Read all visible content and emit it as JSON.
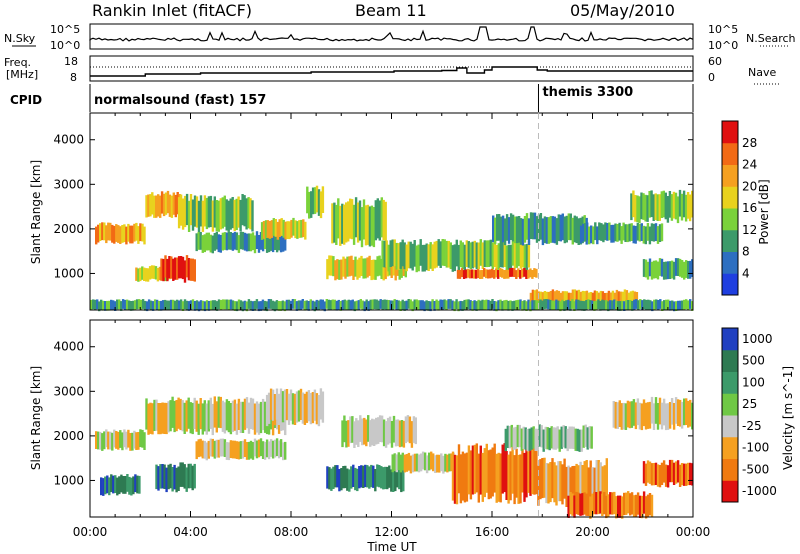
{
  "header": {
    "station": "Rankin Inlet (fitACF)",
    "beam": "Beam 11",
    "date": "05/May/2010"
  },
  "noise_panel": {
    "left_label": "N.Sky",
    "right_label": "N.Search",
    "left_ticks": [
      "10^5",
      "10^0"
    ],
    "right_ticks": [
      "10^5",
      "10^0"
    ]
  },
  "freq_panel": {
    "left_label_line1": "Freq.",
    "left_label_line2": "[MHz]",
    "right_label": "Nave",
    "left_ticks": [
      "18",
      "8"
    ],
    "right_ticks": [
      "60",
      "0"
    ]
  },
  "cpid_panel": {
    "label": "CPID",
    "programs": [
      {
        "name": "normalsound (fast) 157",
        "start_hour": 0
      },
      {
        "name": "themis 3300",
        "start_hour": 17.85
      }
    ]
  },
  "time_axis": {
    "label": "Time UT",
    "ticks": [
      "00:00",
      "04:00",
      "08:00",
      "12:00",
      "16:00",
      "20:00",
      "00:00"
    ]
  },
  "chart_data": [
    {
      "type": "heatmap",
      "title": "",
      "xlabel": "Time UT",
      "ylabel": "Slant Range [km]",
      "xlim_hours": [
        0,
        24
      ],
      "ylim_km": [
        180,
        4600
      ],
      "yticks": [
        "1000",
        "2000",
        "3000",
        "4000"
      ],
      "colorbar": {
        "label": "Power [dB]",
        "ticks": [
          "4",
          "8",
          "12",
          "16",
          "20",
          "24",
          "28"
        ],
        "colors": [
          "#1f3fe0",
          "#2d6fc0",
          "#3c9a6a",
          "#7ad23a",
          "#e8d21e",
          "#f5a020",
          "#f26a15",
          "#e01010"
        ]
      },
      "echo_regions": [
        {
          "t": [
            0.2,
            2.2
          ],
          "r": [
            1700,
            2100
          ],
          "level": 5
        },
        {
          "t": [
            1.8,
            3.2
          ],
          "r": [
            850,
            1150
          ],
          "level": 4
        },
        {
          "t": [
            2.8,
            4.2
          ],
          "r": [
            850,
            1350
          ],
          "level": 7
        },
        {
          "t": [
            2.2,
            3.6
          ],
          "r": [
            2300,
            2800
          ],
          "level": 5
        },
        {
          "t": [
            3.5,
            6.5
          ],
          "r": [
            2000,
            2700
          ],
          "level": 3
        },
        {
          "t": [
            4.2,
            7.8
          ],
          "r": [
            1500,
            1900
          ],
          "level": 2
        },
        {
          "t": [
            6.8,
            8.6
          ],
          "r": [
            1800,
            2200
          ],
          "level": 4
        },
        {
          "t": [
            8.6,
            9.3
          ],
          "r": [
            2300,
            2900
          ],
          "level": 3
        },
        {
          "t": [
            9.6,
            11.8
          ],
          "r": [
            1700,
            2600
          ],
          "level": 3
        },
        {
          "t": [
            9.4,
            12.6
          ],
          "r": [
            900,
            1350
          ],
          "level": 4
        },
        {
          "t": [
            11.6,
            17.5
          ],
          "r": [
            1100,
            1700
          ],
          "level": 3
        },
        {
          "t": [
            14.6,
            17.8
          ],
          "r": [
            900,
            1100
          ],
          "level": 6
        },
        {
          "t": [
            16.0,
            19.8
          ],
          "r": [
            1700,
            2300
          ],
          "level": 2
        },
        {
          "t": [
            17.5,
            21.8
          ],
          "r": [
            250,
            600
          ],
          "level": 5
        },
        {
          "t": [
            19.5,
            22.8
          ],
          "r": [
            1700,
            2100
          ],
          "level": 2
        },
        {
          "t": [
            21.5,
            24.0
          ],
          "r": [
            2200,
            2800
          ],
          "level": 3
        },
        {
          "t": [
            22.0,
            24.0
          ],
          "r": [
            900,
            1300
          ],
          "level": 2
        },
        {
          "t": [
            0.0,
            24.0
          ],
          "r": [
            180,
            400
          ],
          "level": 2
        }
      ]
    },
    {
      "type": "heatmap",
      "title": "",
      "xlabel": "Time UT",
      "ylabel": "Slant Range [km]",
      "xlim_hours": [
        0,
        24
      ],
      "ylim_km": [
        180,
        4600
      ],
      "yticks": [
        "1000",
        "2000",
        "3000",
        "4000"
      ],
      "colorbar": {
        "label": "Velocity [m s^-1]",
        "ticks": [
          "1000",
          "500",
          "100",
          "25",
          "-25",
          "-100",
          "-500",
          "-1000"
        ],
        "colors": [
          "#2040c0",
          "#2e7a52",
          "#3c9a6a",
          "#6fc845",
          "#c8c8c8",
          "#f5a020",
          "#f07a10",
          "#e01010"
        ]
      },
      "echo_regions": [
        {
          "t": [
            0.2,
            2.2
          ],
          "r": [
            1700,
            2100
          ],
          "level": 4
        },
        {
          "t": [
            0.4,
            2.0
          ],
          "r": [
            700,
            1100
          ],
          "level": 1
        },
        {
          "t": [
            2.6,
            4.2
          ],
          "r": [
            800,
            1350
          ],
          "level": 1
        },
        {
          "t": [
            2.2,
            7.8
          ],
          "r": [
            2100,
            2800
          ],
          "level": 4
        },
        {
          "t": [
            4.2,
            7.8
          ],
          "r": [
            1500,
            1900
          ],
          "level": 4
        },
        {
          "t": [
            7.0,
            9.3
          ],
          "r": [
            2300,
            3000
          ],
          "level": 4
        },
        {
          "t": [
            9.4,
            12.5
          ],
          "r": [
            800,
            1300
          ],
          "level": 1
        },
        {
          "t": [
            12.0,
            14.5
          ],
          "r": [
            1200,
            1600
          ],
          "level": 4
        },
        {
          "t": [
            10.0,
            13.0
          ],
          "r": [
            1800,
            2400
          ],
          "level": 4
        },
        {
          "t": [
            14.4,
            17.8
          ],
          "r": [
            600,
            1700
          ],
          "level": 6
        },
        {
          "t": [
            17.8,
            20.6
          ],
          "r": [
            500,
            1400
          ],
          "level": 5
        },
        {
          "t": [
            19.0,
            22.4
          ],
          "r": [
            200,
            700
          ],
          "level": 6
        },
        {
          "t": [
            20.8,
            24.0
          ],
          "r": [
            2200,
            2800
          ],
          "level": 4
        },
        {
          "t": [
            22.0,
            24.0
          ],
          "r": [
            900,
            1400
          ],
          "level": 6
        },
        {
          "t": [
            16.5,
            20.0
          ],
          "r": [
            1700,
            2200
          ],
          "level": 3
        }
      ]
    }
  ]
}
